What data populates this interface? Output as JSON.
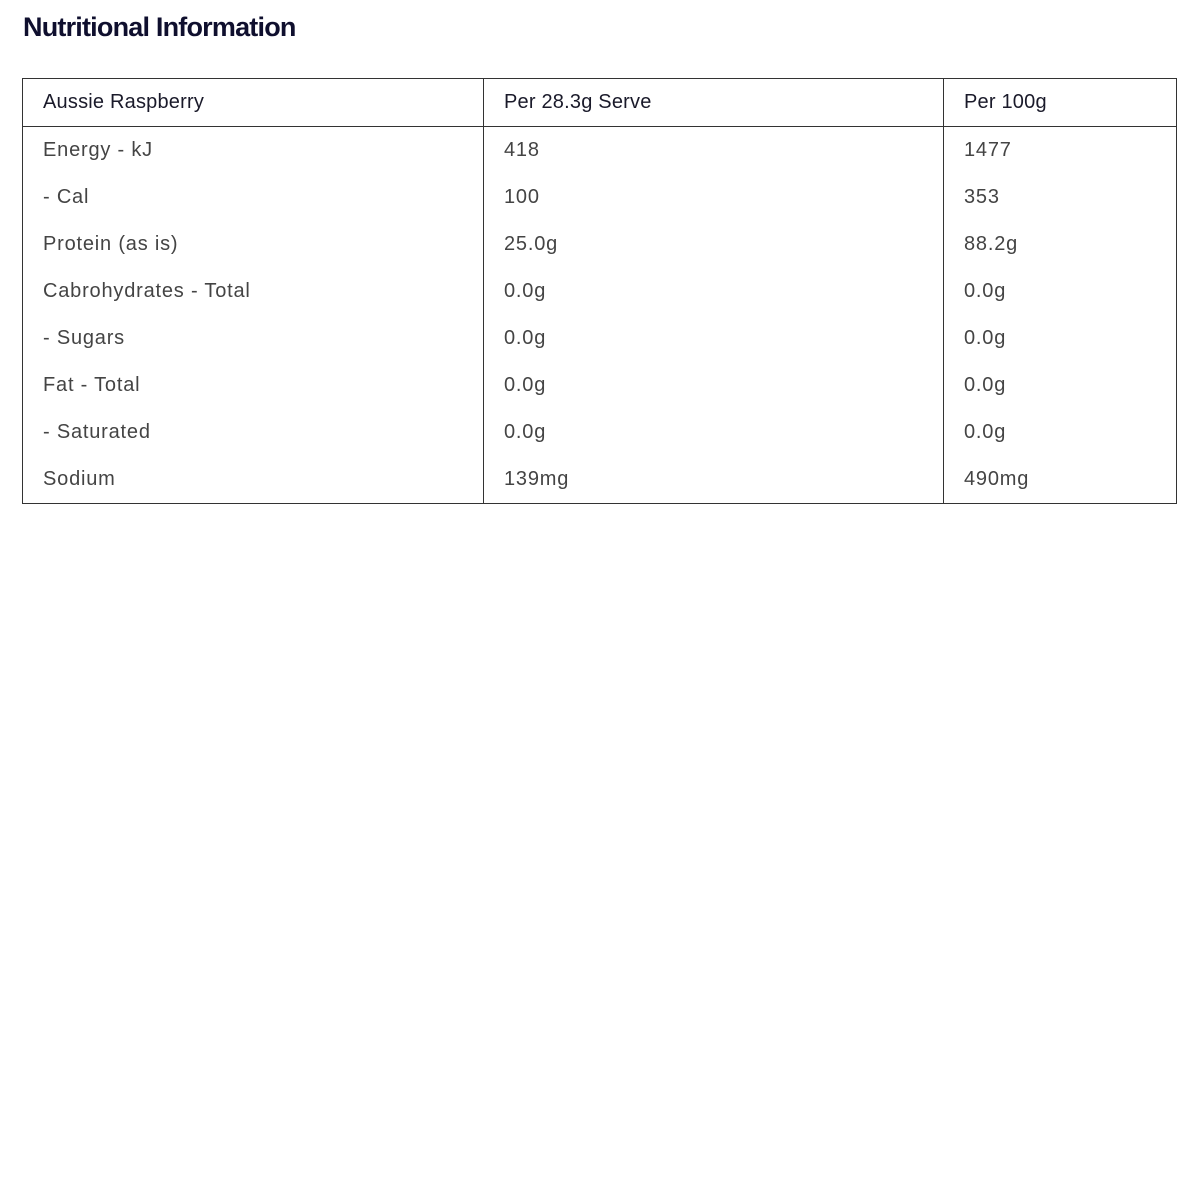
{
  "title": "Nutritional Information",
  "table": {
    "headers": [
      "Aussie Raspberry",
      "Per 28.3g Serve",
      "Per 100g"
    ],
    "rows": [
      [
        "Energy - kJ",
        "418",
        "1477"
      ],
      [
        "- Cal",
        "100",
        "353"
      ],
      [
        "Protein (as is)",
        "25.0g",
        "88.2g"
      ],
      [
        "Cabrohydrates - Total",
        "0.0g",
        "0.0g"
      ],
      [
        "- Sugars",
        "0.0g",
        "0.0g"
      ],
      [
        "Fat - Total",
        "0.0g",
        "0.0g"
      ],
      [
        "- Saturated",
        "0.0g",
        "0.0g"
      ],
      [
        "Sodium",
        "139mg",
        "490mg"
      ]
    ]
  }
}
